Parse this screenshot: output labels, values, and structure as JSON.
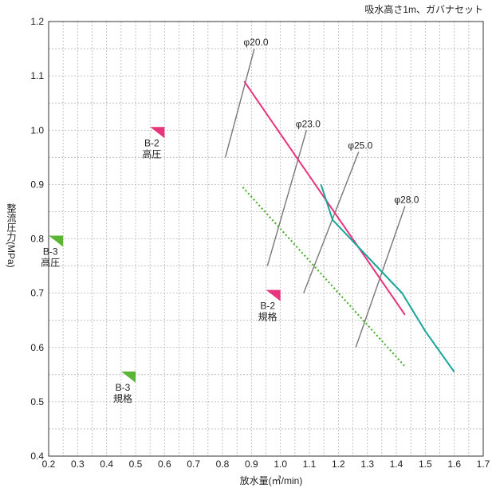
{
  "chart_data": {
    "type": "line",
    "subtitle": "吸水高さ1m、ガバナセット",
    "xlabel": "放水量(㎥/min)",
    "ylabel": "整流圧力(MPa)",
    "xlim": [
      0.2,
      1.7
    ],
    "ylim": [
      0.4,
      1.2
    ],
    "xticks": [
      "0.2",
      "0.3",
      "0.4",
      "0.5",
      "0.6",
      "0.7",
      "0.8",
      "0.9",
      "1.0",
      "1.1",
      "1.2",
      "1.3",
      "1.4",
      "1.5",
      "1.6",
      "1.7"
    ],
    "yticks": [
      "0.4",
      "0.5",
      "0.6",
      "0.7",
      "0.8",
      "0.9",
      "1.0",
      "1.1",
      "1.2"
    ],
    "grid": true,
    "series": [
      {
        "color": "#e8347c",
        "style": "solid",
        "points": [
          [
            0.875,
            1.09
          ],
          [
            1.43,
            0.66
          ]
        ]
      },
      {
        "color": "#17a59a",
        "style": "solid",
        "points": [
          [
            1.14,
            0.9
          ],
          [
            1.18,
            0.835
          ],
          [
            1.42,
            0.7
          ],
          [
            1.5,
            0.63
          ],
          [
            1.6,
            0.555
          ]
        ]
      },
      {
        "color": "#4caf2e",
        "style": "dotted",
        "points": [
          [
            0.87,
            0.895
          ],
          [
            1.43,
            0.565
          ]
        ]
      }
    ],
    "nozzle_lines": [
      {
        "label": "φ20.0",
        "points": [
          [
            0.81,
            0.95
          ],
          [
            0.91,
            1.15
          ]
        ]
      },
      {
        "label": "φ23.0",
        "points": [
          [
            0.955,
            0.75
          ],
          [
            1.09,
            1.0
          ]
        ]
      },
      {
        "label": "φ25.0",
        "points": [
          [
            1.08,
            0.7
          ],
          [
            1.27,
            0.96
          ]
        ]
      },
      {
        "label": "φ28.0",
        "points": [
          [
            1.26,
            0.6
          ],
          [
            1.43,
            0.86
          ]
        ]
      }
    ],
    "markers": [
      {
        "label": "B-2",
        "sublabel": "高圧",
        "color": "#e8347c",
        "x": 0.6,
        "y": 1.0
      },
      {
        "label": "B-2",
        "sublabel": "規格",
        "color": "#e8347c",
        "x": 1.0,
        "y": 0.7
      },
      {
        "label": "B-3",
        "sublabel": "高圧",
        "color": "#5ab534",
        "x": 0.25,
        "y": 0.8
      },
      {
        "label": "B-3",
        "sublabel": "規格",
        "color": "#5ab534",
        "x": 0.5,
        "y": 0.55
      }
    ]
  }
}
